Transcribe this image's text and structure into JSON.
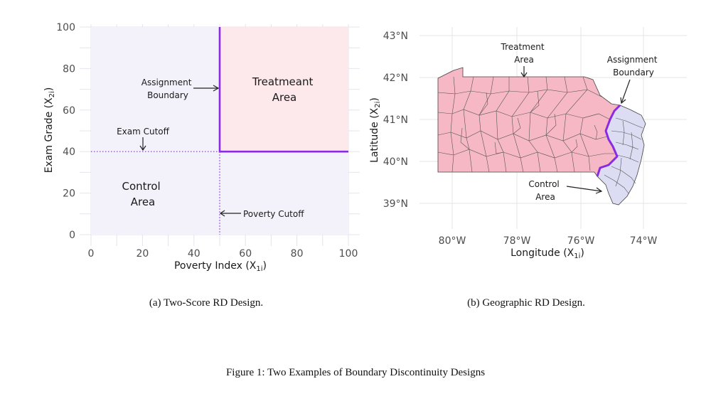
{
  "panel_a": {
    "ylabel": "Exam Grade (X",
    "ylabel_sub": "2i",
    "ylabel_end": ")",
    "xlabel": "Poverty Index (X",
    "xlabel_sub": "1i",
    "xlabel_end": ")",
    "treatment_label": [
      "Treatmeant",
      "Area"
    ],
    "control_label": [
      "Control",
      "Area"
    ],
    "boundary_label": [
      "Assignment",
      "Boundary"
    ],
    "exam_cutoff_label": "Exam Cutoff",
    "poverty_cutoff_label": "Poverty Cutoff",
    "caption": "(a) Two-Score RD Design."
  },
  "panel_b": {
    "ylabel": "Latitude (X",
    "ylabel_sub": "2i",
    "ylabel_end": ")",
    "xlabel": "Longitude (X",
    "xlabel_sub": "1i",
    "xlabel_end": ")",
    "treatment_label": [
      "Treatment",
      "Area"
    ],
    "control_label": [
      "Control",
      "Area"
    ],
    "boundary_label": [
      "Assignment",
      "Boundary"
    ],
    "caption": "(b) Geographic RD Design."
  },
  "figure_caption": "Figure 1: Two Examples of Boundary Discontinuity Designs",
  "colors": {
    "treatment_fill": "#fde8ec",
    "control_fill": "#f3f2fb",
    "boundary": "#8a2be2",
    "map_treatment": "#f7b8c6",
    "map_control": "#dcdcf3"
  },
  "chart_data": [
    {
      "type": "area",
      "title": "",
      "xlabel": "Poverty Index (X1i)",
      "ylabel": "Exam Grade (X2i)",
      "xlim": [
        0,
        100
      ],
      "ylim": [
        0,
        100
      ],
      "x_ticks": [
        0,
        20,
        40,
        60,
        80,
        100
      ],
      "y_ticks": [
        0,
        20,
        40,
        60,
        80,
        100
      ],
      "poverty_cutoff": 50,
      "exam_cutoff": 40,
      "boundary": [
        [
          50,
          100
        ],
        [
          50,
          40
        ],
        [
          100,
          40
        ]
      ],
      "grid": true
    },
    {
      "type": "map",
      "title": "",
      "xlabel": "Longitude (X1i)",
      "ylabel": "Latitude (X2i)",
      "x_ticks": [
        "80°W",
        "78°W",
        "76°W",
        "74°W"
      ],
      "y_ticks": [
        "39°N",
        "40°N",
        "41°N",
        "42°N",
        "43°N"
      ],
      "grid": true
    }
  ]
}
